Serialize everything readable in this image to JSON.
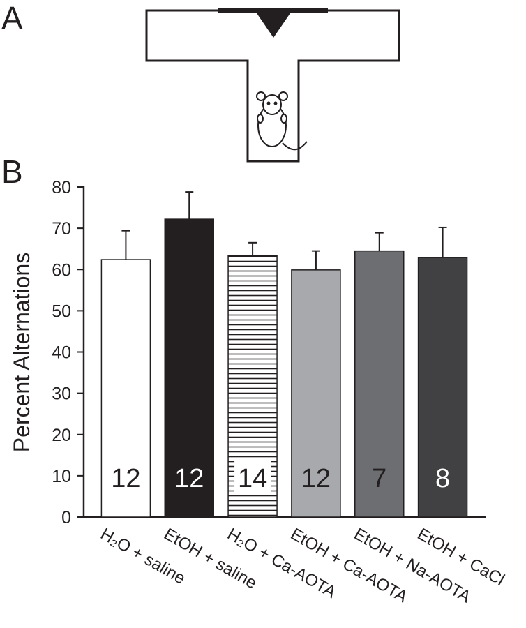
{
  "panel_a": {
    "label": "A"
  },
  "chart_data": {
    "type": "bar",
    "panel_label": "B",
    "ylabel": "Percent Alternations",
    "categories": [
      "H₂O + saline",
      "EtOH + saline",
      "H₂O + Ca-AOTA",
      "EtOH + Ca-AOTA",
      "EtOH + Na-AOTA",
      "EtOH + CaCl"
    ],
    "values": [
      62.4,
      72.2,
      63.3,
      59.9,
      64.5,
      62.9
    ],
    "errors": [
      7.0,
      6.6,
      3.2,
      4.6,
      4.4,
      7.3
    ],
    "n_labels": [
      "12",
      "12",
      "14",
      "12",
      "7",
      "8"
    ],
    "colors": [
      "#ffffff",
      "#231f20",
      "#ffffff",
      "#a7a9ac",
      "#6d6e71",
      "#414042"
    ],
    "hatch": [
      false,
      false,
      true,
      false,
      false,
      false
    ],
    "ylim": [
      0,
      80
    ],
    "yticks": [
      0,
      10,
      20,
      30,
      40,
      50,
      60,
      70,
      80
    ]
  }
}
